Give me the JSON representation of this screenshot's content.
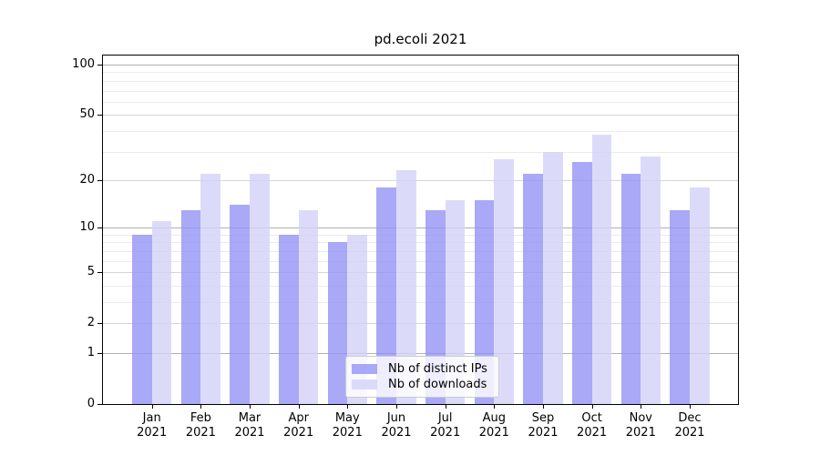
{
  "figure": {
    "title": "pd.ecoli 2021"
  },
  "chart_data": {
    "type": "bar",
    "title": "pd.ecoli 2021",
    "categories": [
      "Jan 2021",
      "Feb 2021",
      "Mar 2021",
      "Apr 2021",
      "May 2021",
      "Jun 2021",
      "Jul 2021",
      "Aug 2021",
      "Sep 2021",
      "Oct 2021",
      "Nov 2021",
      "Dec 2021"
    ],
    "month_labels": [
      "Jan",
      "Feb",
      "Mar",
      "Apr",
      "May",
      "Jun",
      "Jul",
      "Aug",
      "Sep",
      "Oct",
      "Nov",
      "Dec"
    ],
    "year_label": "2021",
    "series": [
      {
        "name": "Nb of distinct IPs",
        "color": "#9393f5",
        "alpha": 0.8,
        "values": [
          9,
          13,
          14,
          9,
          8,
          18,
          13,
          15,
          22,
          26,
          22,
          13
        ]
      },
      {
        "name": "Nb of downloads",
        "color": "#d2d2f7",
        "alpha": 0.8,
        "values": [
          11,
          22,
          22,
          13,
          9,
          23,
          15,
          27,
          30,
          38,
          28,
          18
        ]
      }
    ],
    "yscale": "log1p",
    "y_ticks": [
      100,
      50,
      20,
      10,
      5,
      2,
      1,
      0
    ],
    "ylim": [
      0,
      112
    ],
    "grid": "horizontal log major+minor",
    "legend_position": "lower center",
    "colors": {
      "axis": "#000000",
      "grid_power10": "#b0b0b0",
      "grid_major": "#d6d6d6",
      "grid_minor": "#ebebeb",
      "background": "#ffffff"
    }
  }
}
